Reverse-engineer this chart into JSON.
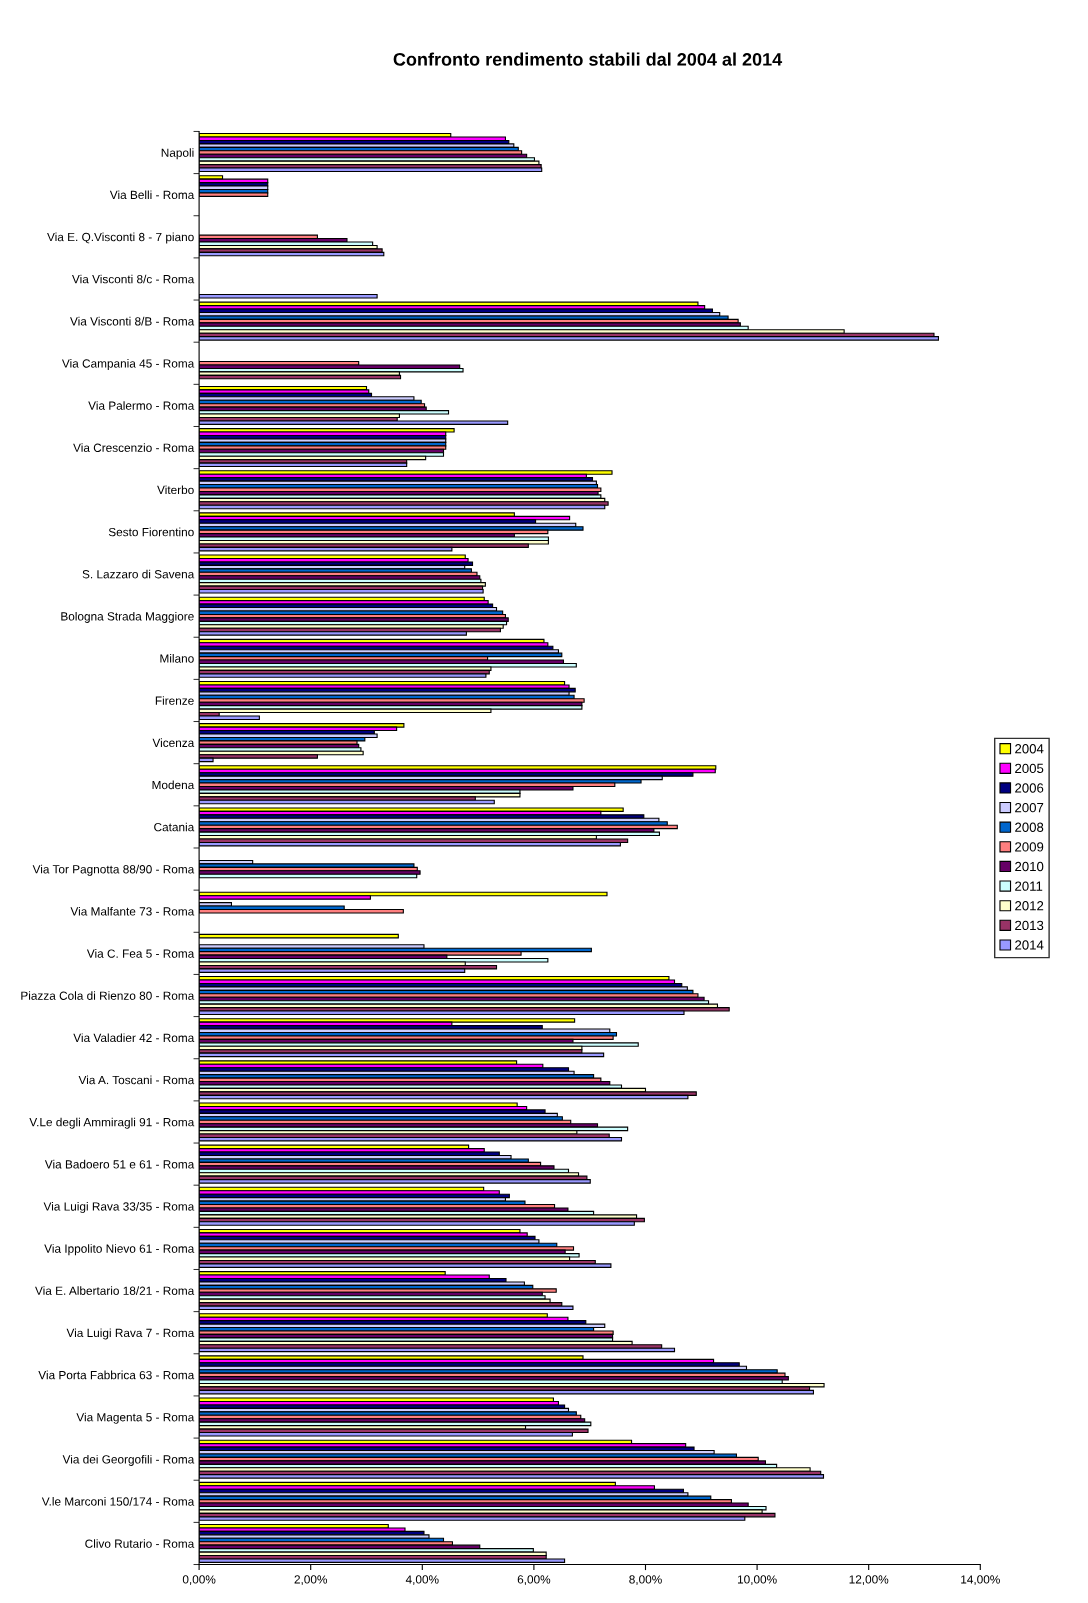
{
  "chart_data": {
    "type": "bar",
    "orientation": "horizontal",
    "title": "Confronto rendimento stabili dal 2004 al 2014",
    "categories": [
      "Napoli",
      "Via Belli - Roma",
      "Via E. Q.Visconti 8 - 7 piano",
      "Via Visconti 8/c - Roma",
      "Via Visconti 8/B - Roma",
      "Via Campania 45 - Roma",
      "Via Palermo - Roma",
      "Via Crescenzio - Roma",
      "Viterbo",
      "Sesto Fiorentino",
      "S. Lazzaro di Savena",
      "Bologna Strada Maggiore",
      "Milano",
      "Firenze",
      "Vicenza",
      "Modena",
      "Catania",
      "Via Tor Pagnotta 88/90 - Roma",
      "Via Malfante 73 - Roma",
      "Via C. Fea 5 - Roma",
      "Piazza Cola di Rienzo 80 - Roma",
      "Via Valadier 42 - Roma",
      "Via A. Toscani - Roma",
      "V.Le degli Ammiragli 91 - Roma",
      "Via Badoero 51 e 61 - Roma",
      "Via Luigi Rava 33/35 - Roma",
      "Via Ippolito Nievo 61 - Roma",
      "Via E. Albertario 18/21 - Roma",
      "Via Luigi Rava 7 - Roma",
      "Via Porta Fabbrica 63 - Roma",
      "Via Magenta 5 - Roma",
      "Via dei Georgofili - Roma",
      "V.le Marconi 150/174 - Roma",
      "Clivo Rutario - Roma"
    ],
    "series": [
      {
        "name": "2004",
        "color": "#ffff00",
        "values": [
          4.51,
          0.42,
          null,
          null,
          8.94,
          null,
          3.0,
          4.57,
          7.4,
          5.65,
          4.77,
          5.11,
          6.18,
          6.55,
          3.67,
          9.26,
          7.6,
          null,
          7.31,
          3.57,
          8.42,
          6.73,
          5.69,
          5.7,
          4.83,
          5.1,
          5.75,
          4.41,
          6.24,
          6.88,
          6.35,
          7.75,
          7.46,
          3.39
        ]
      },
      {
        "name": "2005",
        "color": "#ff00ff",
        "values": [
          5.49,
          1.23,
          null,
          null,
          9.06,
          null,
          3.04,
          4.42,
          6.94,
          6.64,
          4.82,
          5.18,
          6.25,
          6.63,
          3.54,
          9.25,
          7.2,
          null,
          3.07,
          null,
          8.52,
          4.53,
          6.16,
          5.87,
          5.11,
          5.38,
          5.88,
          5.2,
          6.61,
          9.22,
          6.44,
          8.72,
          8.16,
          3.69
        ]
      },
      {
        "name": "2006",
        "color": "#000080",
        "values": [
          5.55,
          1.23,
          null,
          null,
          9.2,
          null,
          3.09,
          4.42,
          7.05,
          6.03,
          4.9,
          5.26,
          6.34,
          6.74,
          3.14,
          8.85,
          7.97,
          null,
          null,
          null,
          8.65,
          6.15,
          6.62,
          6.2,
          5.38,
          5.56,
          6.02,
          5.5,
          6.93,
          9.68,
          6.55,
          8.87,
          8.68,
          4.03
        ]
      },
      {
        "name": "2007",
        "color": "#ccccff",
        "values": [
          5.64,
          1.23,
          null,
          null,
          9.33,
          null,
          3.85,
          4.42,
          7.12,
          6.75,
          4.76,
          5.33,
          6.44,
          6.63,
          3.19,
          8.3,
          8.24,
          0.96,
          0.58,
          4.03,
          8.75,
          7.36,
          6.72,
          6.42,
          5.59,
          5.49,
          6.09,
          5.83,
          7.27,
          9.81,
          6.62,
          9.23,
          8.76,
          4.12
        ]
      },
      {
        "name": "2008",
        "color": "#0066cc",
        "values": [
          5.72,
          1.23,
          null,
          null,
          9.48,
          null,
          3.98,
          4.42,
          7.14,
          6.88,
          4.88,
          5.44,
          6.5,
          6.72,
          2.97,
          7.92,
          8.39,
          3.85,
          2.6,
          7.03,
          8.85,
          7.48,
          7.07,
          6.51,
          5.9,
          5.84,
          6.41,
          5.98,
          7.07,
          10.36,
          6.76,
          9.63,
          9.17,
          4.38
        ]
      },
      {
        "name": "2009",
        "color": "#ff8080",
        "values": [
          5.78,
          1.23,
          2.12,
          null,
          9.66,
          2.86,
          4.04,
          4.42,
          7.2,
          6.25,
          4.98,
          5.49,
          5.17,
          6.9,
          2.83,
          7.45,
          8.57,
          3.91,
          3.66,
          5.77,
          8.94,
          7.42,
          7.2,
          6.66,
          6.12,
          6.37,
          6.71,
          6.4,
          7.42,
          10.5,
          6.84,
          10.02,
          9.54,
          4.54
        ]
      },
      {
        "name": "2010",
        "color": "#660066",
        "values": [
          5.87,
          null,
          2.65,
          null,
          9.7,
          4.67,
          4.07,
          4.38,
          7.15,
          5.65,
          5.03,
          5.54,
          6.53,
          6.86,
          2.86,
          6.7,
          8.15,
          3.96,
          null,
          4.44,
          9.05,
          6.7,
          7.36,
          7.14,
          6.36,
          6.61,
          6.56,
          6.15,
          7.41,
          10.56,
          6.91,
          10.15,
          9.84,
          5.03
        ]
      },
      {
        "name": "2011",
        "color": "#ccffff",
        "values": [
          6.01,
          null,
          3.11,
          null,
          9.84,
          4.73,
          4.47,
          4.38,
          7.2,
          6.26,
          5.05,
          5.51,
          6.76,
          6.86,
          2.9,
          5.75,
          8.25,
          3.9,
          null,
          6.25,
          9.13,
          7.87,
          7.57,
          7.68,
          6.62,
          7.07,
          6.81,
          6.2,
          7.41,
          10.45,
          7.02,
          10.35,
          10.16,
          5.99
        ]
      },
      {
        "name": "2012",
        "color": "#ffffcc",
        "values": [
          6.09,
          null,
          3.19,
          null,
          11.56,
          3.59,
          3.59,
          4.06,
          7.27,
          6.26,
          5.13,
          5.45,
          5.23,
          5.23,
          2.94,
          5.75,
          7.12,
          null,
          null,
          4.77,
          9.29,
          6.86,
          8.0,
          6.77,
          6.8,
          7.84,
          6.64,
          6.29,
          7.76,
          11.2,
          5.85,
          10.95,
          10.09,
          6.22
        ]
      },
      {
        "name": "2013",
        "color": "#993366",
        "values": [
          6.13,
          null,
          3.28,
          null,
          13.17,
          3.61,
          3.55,
          3.72,
          7.33,
          5.9,
          5.08,
          5.4,
          5.2,
          0.36,
          2.12,
          4.95,
          7.68,
          null,
          null,
          5.33,
          9.5,
          6.86,
          8.91,
          7.35,
          6.95,
          7.98,
          7.1,
          6.5,
          8.29,
          10.94,
          6.97,
          11.14,
          10.32,
          6.22
        ]
      },
      {
        "name": "2014",
        "color": "#9999ff",
        "values": [
          6.14,
          null,
          3.31,
          3.19,
          13.25,
          null,
          5.53,
          3.72,
          7.27,
          4.53,
          5.09,
          4.79,
          5.14,
          1.08,
          0.25,
          5.29,
          7.55,
          null,
          null,
          4.76,
          8.69,
          7.25,
          8.76,
          7.57,
          7.01,
          7.8,
          7.38,
          6.7,
          8.52,
          11.01,
          6.69,
          11.19,
          9.78,
          6.55
        ]
      }
    ],
    "xlim": [
      0,
      14
    ],
    "xticks": [
      {
        "value": 0,
        "label": "0,00%"
      },
      {
        "value": 2,
        "label": "2,00%"
      },
      {
        "value": 4,
        "label": "4,00%"
      },
      {
        "value": 6,
        "label": "6,00%"
      },
      {
        "value": 8,
        "label": "8,00%"
      },
      {
        "value": 10,
        "label": "10,00%"
      },
      {
        "value": 12,
        "label": "12,00%"
      },
      {
        "value": 14,
        "label": "14,00%"
      }
    ],
    "grid": false,
    "legend": "right"
  }
}
